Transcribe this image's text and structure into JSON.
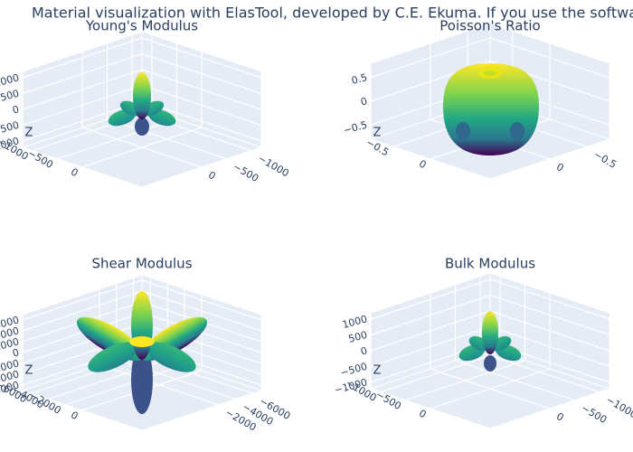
{
  "title": "Material visualization with ElasTool, developed by C.E. Ekuma. If you use the software in",
  "chart_data": [
    {
      "type": "surface3d",
      "title": "Young's Modulus",
      "zlabel": "Z",
      "zlim": [
        -1200,
        1200
      ],
      "zticks": [
        1000,
        500,
        0,
        {
          "value": -500,
          "label": "−500"
        },
        {
          "value": -1000,
          "label": "−1000"
        }
      ],
      "xlim": [
        -1200,
        1200
      ],
      "xticks": [
        {
          "value": -1000,
          "label": "−1000"
        },
        {
          "value": -500,
          "label": "−500"
        },
        0
      ],
      "ylim": [
        -1200,
        1200
      ],
      "yticks": [
        {
          "value": -1000,
          "label": "−1000"
        },
        {
          "value": -500,
          "label": "−500"
        },
        0
      ]
    },
    {
      "type": "surface3d",
      "title": "Poisson's Ratio",
      "zlabel": "Z",
      "zlim": [
        -0.8,
        0.8
      ],
      "zticks": [
        0.5,
        0,
        {
          "value": -0.5,
          "label": "−0.5"
        }
      ],
      "xlim": [
        -0.8,
        0.8
      ],
      "xticks": [
        {
          "value": -0.5,
          "label": "−0.5"
        },
        0
      ],
      "ylim": [
        -0.8,
        0.8
      ],
      "yticks": [
        {
          "value": -0.5,
          "label": "−0.5"
        },
        0
      ]
    },
    {
      "type": "surface3d",
      "title": "Shear Modulus",
      "zlabel": "Z",
      "zlim": [
        -7000,
        7000
      ],
      "zticks": [
        6000,
        4000,
        2000,
        0,
        {
          "value": -2000,
          "label": "−2000"
        },
        {
          "value": -4000,
          "label": "−4000"
        },
        {
          "value": -6000,
          "label": "−6000"
        }
      ],
      "xlim": [
        -7000,
        7000
      ],
      "xticks": [
        {
          "value": -6000,
          "label": "−6000"
        },
        {
          "value": -4000,
          "label": "−4000"
        },
        {
          "value": -2000,
          "label": "−2000"
        }
      ],
      "ylim": [
        -7000,
        7000
      ],
      "yticks": [
        {
          "value": -6000,
          "label": "−6000"
        },
        {
          "value": -4000,
          "label": "−4000"
        },
        {
          "value": -2000,
          "label": "−2000"
        },
        0
      ]
    },
    {
      "type": "surface3d",
      "title": "Bulk Modulus",
      "zlabel": "Z",
      "zlim": [
        -1200,
        1200
      ],
      "zticks": [
        1000,
        500,
        0,
        {
          "value": -500,
          "label": "−500"
        },
        {
          "value": -1000,
          "label": "−1000"
        }
      ],
      "xlim": [
        -1200,
        1200
      ],
      "xticks": [
        {
          "value": -1000,
          "label": "−1000"
        },
        {
          "value": -500,
          "label": "−500"
        },
        0
      ],
      "ylim": [
        -1200,
        1200
      ],
      "yticks": [
        {
          "value": -1000,
          "label": "−1000"
        },
        {
          "value": -500,
          "label": "−500"
        },
        0
      ]
    }
  ]
}
